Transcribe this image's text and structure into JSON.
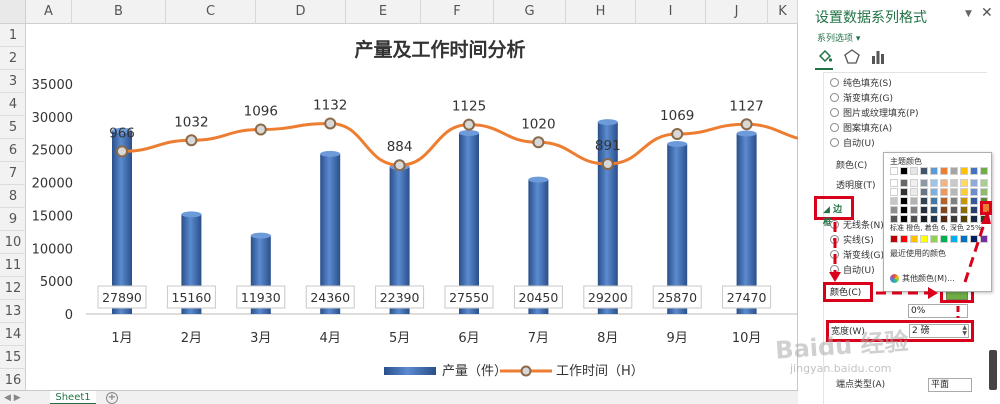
{
  "spreadsheet": {
    "columns": [
      "A",
      "B",
      "C",
      "D",
      "E",
      "F",
      "G",
      "H",
      "I",
      "J",
      "K"
    ],
    "rows": [
      "1",
      "2",
      "3",
      "4",
      "5",
      "6",
      "7",
      "8",
      "9",
      "10",
      "11",
      "12",
      "13",
      "14",
      "15",
      "16"
    ],
    "sheet_tab": "Sheet1",
    "add_sheet": "+"
  },
  "chart_data": {
    "type": "bar",
    "title": "产量及工作时间分析",
    "categories": [
      "1月",
      "2月",
      "3月",
      "4月",
      "5月",
      "6月",
      "7月",
      "8月",
      "9月",
      "10月"
    ],
    "ylim": [
      0,
      35000
    ],
    "yticks": [
      0,
      5000,
      10000,
      15000,
      20000,
      25000,
      30000,
      35000
    ],
    "series": [
      {
        "name": "产量（件）",
        "kind": "bar",
        "color": "#3f6fb4",
        "values": [
          27890,
          15160,
          11930,
          24360,
          22390,
          27550,
          20450,
          29200,
          25870,
          27470
        ]
      },
      {
        "name": "工作时间（H）",
        "kind": "line",
        "color": "#ed7d31",
        "values": [
          966,
          1032,
          1096,
          1132,
          884,
          1125,
          1020,
          891,
          1069,
          1127
        ],
        "line_plot_ylim": [
          0,
          1200
        ]
      }
    ],
    "legend_position": "bottom",
    "grid": false
  },
  "pane": {
    "title": "设置数据系列格式",
    "series_options": "系列选项",
    "fill_options": [
      "纯色填充(S)",
      "渐变填充(G)",
      "图片或纹理填充(P)",
      "图案填充(A)",
      "自动(U)"
    ],
    "color_label": "颜色(C)",
    "transparency_label": "透明度(T)",
    "border_section": "边框",
    "border_options": [
      "无线条(N)",
      "实线(S)",
      "渐变线(G)",
      "自动(U)"
    ],
    "border_color_label": "颜色(C)",
    "transparency_value": "0%",
    "width_label": "宽度(W)",
    "width_value": "2 磅",
    "cap_type_label": "端点类型(A)",
    "cap_type_value": "平面"
  },
  "color_dropdown": {
    "theme_colors_label": "主题颜色",
    "standard_colors_label": "标准",
    "tooltip_text": "橙色, 着色 6, 深色 25%",
    "recent_colors_label": "最近使用的颜色",
    "more_colors_label": "其他颜色(M)...",
    "theme_columns": [
      "#ffffff",
      "#000000",
      "#e7e6e6",
      "#44546a",
      "#5b9bd5",
      "#ed7d31",
      "#a5a5a5",
      "#ffc000",
      "#4472c4",
      "#70ad47"
    ],
    "standard_colors": [
      "#c00000",
      "#ff0000",
      "#ffc000",
      "#ffff00",
      "#92d050",
      "#00b050",
      "#00b0f0",
      "#0070c0",
      "#002060",
      "#7030a0"
    ],
    "selected_color": "#ed7d31"
  },
  "watermark": {
    "text": "Baidu 经验",
    "url": "jingyan.baidu.com"
  }
}
